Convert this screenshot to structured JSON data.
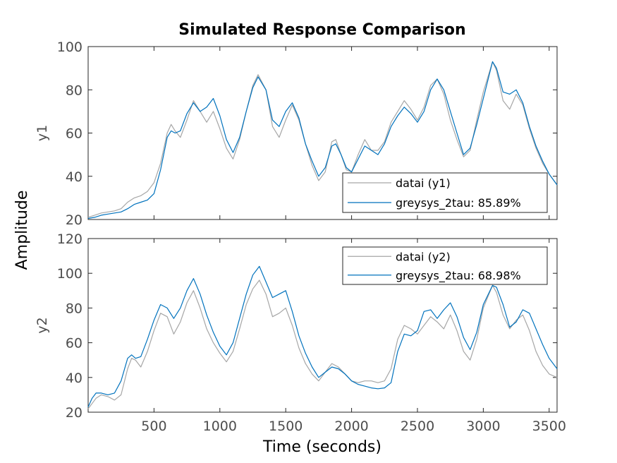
{
  "chart_data": {
    "type": "line",
    "title": "Simulated Response Comparison",
    "xlabel": "Time (seconds)",
    "ylabel": "Amplitude",
    "xlim": [
      0,
      3560
    ],
    "xticks": [
      500,
      1000,
      1500,
      2000,
      2500,
      3000,
      3500
    ],
    "colors": {
      "data": "#a6a6a6",
      "model": "#0072bd"
    },
    "subplots": [
      {
        "ylabel": "y1",
        "ylim": [
          20,
          100
        ],
        "yticks": [
          20,
          40,
          60,
          80,
          100
        ],
        "legend_position": "bottom-right",
        "series": [
          {
            "name": "datai (y1)",
            "x": [
              0,
              50,
              100,
              150,
              200,
              250,
              300,
              350,
              400,
              450,
              500,
              550,
              600,
              630,
              660,
              700,
              750,
              800,
              850,
              900,
              950,
              1000,
              1050,
              1100,
              1150,
              1200,
              1250,
              1290,
              1350,
              1400,
              1450,
              1500,
              1550,
              1600,
              1650,
              1700,
              1750,
              1800,
              1850,
              1880,
              1920,
              1960,
              2000,
              2050,
              2100,
              2150,
              2200,
              2250,
              2300,
              2350,
              2400,
              2450,
              2500,
              2550,
              2600,
              2650,
              2700,
              2750,
              2800,
              2850,
              2900,
              2950,
              3000,
              3070,
              3100,
              3150,
              3200,
              3250,
              3300,
              3350,
              3400,
              3450,
              3500,
              3560
            ],
            "y": [
              21,
              22,
              23,
              23.5,
              24,
              25,
              28,
              30,
              31,
              33,
              37,
              46,
              60,
              64,
              61,
              58,
              66,
              75,
              70,
              65,
              70,
              62,
              53,
              48,
              57,
              70,
              82,
              87,
              80,
              63,
              58,
              66,
              73,
              66,
              55,
              45,
              38,
              42,
              56,
              57,
              50,
              43,
              42,
              50,
              57,
              52,
              52,
              56,
              65,
              70,
              75,
              71,
              66,
              72,
              82,
              85,
              78,
              66,
              57,
              49,
              52,
              66,
              79,
              93,
              89,
              75,
              71,
              78,
              73,
              62,
              53,
              46,
              41,
              36
            ]
          },
          {
            "name": "greysys_2tau: 85.89%",
            "fit": "85.89%",
            "x": [
              0,
              50,
              100,
              150,
              200,
              250,
              300,
              350,
              400,
              450,
              500,
              550,
              600,
              630,
              660,
              700,
              750,
              800,
              850,
              900,
              950,
              1000,
              1050,
              1100,
              1150,
              1200,
              1250,
              1290,
              1350,
              1400,
              1450,
              1500,
              1550,
              1600,
              1650,
              1700,
              1750,
              1800,
              1850,
              1880,
              1920,
              1960,
              2000,
              2050,
              2100,
              2150,
              2200,
              2250,
              2300,
              2350,
              2400,
              2450,
              2500,
              2550,
              2600,
              2650,
              2700,
              2750,
              2800,
              2850,
              2900,
              2950,
              3000,
              3070,
              3100,
              3150,
              3200,
              3250,
              3300,
              3350,
              3400,
              3450,
              3500,
              3560
            ],
            "y": [
              20.5,
              21,
              22,
              22.5,
              23,
              23.5,
              25,
              27,
              28,
              29,
              32,
              43,
              58,
              61,
              60,
              61,
              69,
              74,
              70,
              72,
              76,
              68,
              57,
              51,
              58,
              70,
              81,
              86,
              80,
              66,
              63,
              70,
              74,
              67,
              55,
              47,
              40,
              44,
              54,
              55,
              50,
              44,
              42,
              48,
              54,
              52,
              50,
              55,
              63,
              68,
              72,
              69,
              65,
              70,
              80,
              85,
              80,
              70,
              60,
              50,
              53,
              64,
              76,
              93,
              90,
              79,
              78,
              80,
              74,
              63,
              54,
              47,
              41,
              36
            ]
          }
        ]
      },
      {
        "ylabel": "y2",
        "ylim": [
          20,
          120
        ],
        "yticks": [
          20,
          40,
          60,
          80,
          100,
          120
        ],
        "legend_position": "top-right",
        "series": [
          {
            "name": "datai (y2)",
            "x": [
              0,
              30,
              60,
              100,
              150,
              200,
              250,
              300,
              330,
              360,
              400,
              450,
              500,
              550,
              600,
              650,
              700,
              750,
              800,
              850,
              900,
              950,
              1000,
              1050,
              1100,
              1150,
              1200,
              1250,
              1300,
              1350,
              1400,
              1450,
              1500,
              1550,
              1600,
              1650,
              1700,
              1750,
              1800,
              1850,
              1900,
              1950,
              2000,
              2050,
              2100,
              2150,
              2200,
              2250,
              2300,
              2350,
              2400,
              2450,
              2500,
              2550,
              2600,
              2650,
              2700,
              2750,
              2800,
              2850,
              2900,
              2950,
              3000,
              3070,
              3100,
              3150,
              3200,
              3250,
              3300,
              3350,
              3400,
              3450,
              3500,
              3560
            ],
            "y": [
              22,
              25,
              28,
              30,
              29,
              27,
              30,
              45,
              51,
              50,
              46,
              55,
              67,
              77,
              75,
              65,
              72,
              83,
              90,
              80,
              68,
              60,
              54,
              49,
              55,
              68,
              82,
              91,
              96,
              88,
              75,
              77,
              80,
              70,
              57,
              48,
              42,
              38,
              43,
              48,
              46,
              42,
              38,
              37,
              38,
              38,
              37,
              38,
              45,
              62,
              70,
              68,
              65,
              70,
              75,
              72,
              68,
              76,
              67,
              55,
              50,
              62,
              80,
              93,
              89,
              76,
              68,
              73,
              76,
              67,
              55,
              47,
              42,
              40
            ]
          },
          {
            "name": "greysys_2tau: 68.98%",
            "fit": "68.98%",
            "x": [
              0,
              30,
              60,
              100,
              150,
              200,
              250,
              300,
              330,
              360,
              400,
              450,
              500,
              550,
              600,
              650,
              700,
              750,
              800,
              850,
              900,
              950,
              1000,
              1050,
              1100,
              1150,
              1200,
              1250,
              1300,
              1350,
              1400,
              1450,
              1500,
              1550,
              1600,
              1650,
              1700,
              1750,
              1800,
              1850,
              1900,
              1950,
              2000,
              2050,
              2100,
              2150,
              2200,
              2250,
              2300,
              2350,
              2400,
              2450,
              2500,
              2550,
              2600,
              2650,
              2700,
              2750,
              2800,
              2850,
              2900,
              2950,
              3000,
              3070,
              3100,
              3150,
              3200,
              3250,
              3300,
              3350,
              3400,
              3450,
              3500,
              3560
            ],
            "y": [
              23,
              28,
              31,
              31,
              30,
              31,
              38,
              51,
              53,
              51,
              52,
              62,
              73,
              82,
              80,
              74,
              80,
              90,
              97,
              88,
              76,
              66,
              58,
              53,
              60,
              74,
              88,
              99,
              104,
              95,
              86,
              88,
              90,
              78,
              64,
              54,
              46,
              40,
              43,
              46,
              45,
              42,
              38,
              36,
              35,
              34,
              33.5,
              34,
              37,
              55,
              65,
              64,
              67,
              78,
              79,
              74,
              79,
              83,
              75,
              63,
              56,
              66,
              82,
              93,
              92,
              82,
              69,
              72,
              79,
              77,
              68,
              59,
              51,
              45
            ]
          }
        ]
      }
    ]
  }
}
